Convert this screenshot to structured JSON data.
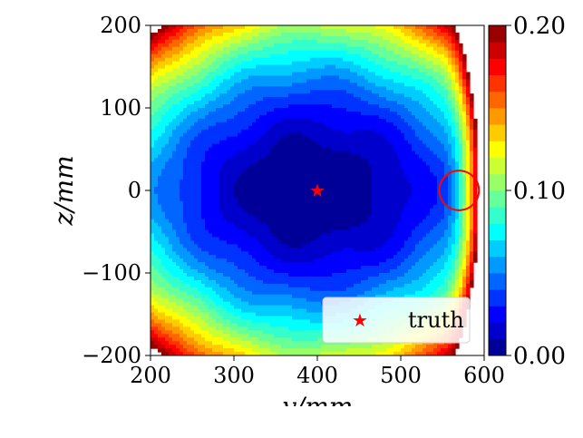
{
  "chart_data": {
    "type": "heatmap",
    "title": "",
    "xlabel": "y/mm",
    "ylabel": "z/mm",
    "xlim": [
      200,
      600
    ],
    "ylim": [
      -200,
      200
    ],
    "x_ticks": [
      200,
      300,
      400,
      500,
      600
    ],
    "y_ticks": [
      -200,
      -100,
      0,
      100,
      200
    ],
    "x_tick_labels": [
      "200",
      "300",
      "400",
      "500",
      "600"
    ],
    "y_tick_labels": [
      "−200",
      "−100",
      "0",
      "100",
      "200"
    ],
    "colorbar": {
      "range": [
        0.0,
        0.2
      ],
      "ticks": [
        0.0,
        0.1,
        0.2
      ],
      "tick_labels": [
        "0.00",
        "0.10",
        "0.20"
      ],
      "levels": 20,
      "colormap": "jet"
    },
    "field_description": "contour field with minimum near (400, 0) increasing toward edges; steep rise near y=560-600",
    "minimum_region_center": [
      395,
      0
    ],
    "markers": [
      {
        "label": "truth",
        "x": 400,
        "y": 0,
        "symbol": "star",
        "color": "#ff0000"
      }
    ],
    "circle_annotation": {
      "x": 570,
      "y": 0,
      "radius_y": 24,
      "color": "#ff0000"
    },
    "legend": {
      "position": "lower-right",
      "entries": [
        "truth"
      ]
    },
    "grid": false
  }
}
